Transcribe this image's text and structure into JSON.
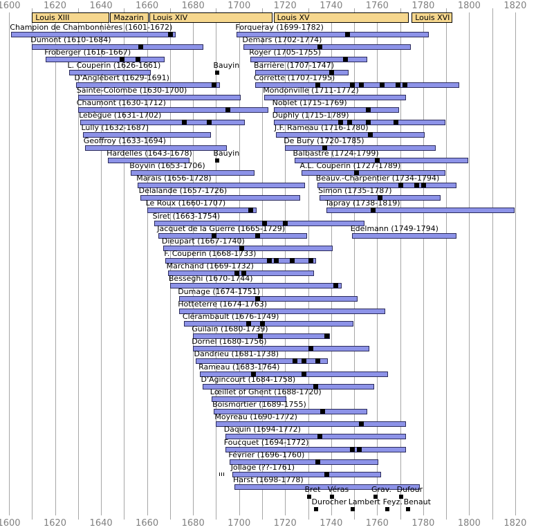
{
  "colors": {
    "background": "#ffffff",
    "bar_fill": "#8d93e8",
    "bar_border": "#2a2a5a",
    "reign_fill": "#f6d78e",
    "reign_border": "#000000",
    "gridline": "#a6a6a6",
    "axis_label": "#808080",
    "text": "#000000",
    "marker": "#000000"
  },
  "chart_data": {
    "type": "bar",
    "subtype": "horizontal-timeline-gantt",
    "xlabel": "year",
    "ylabel": "",
    "grid": "vertical every 10 years",
    "axis": {
      "min": 1600,
      "max": 1820,
      "label_step": 20,
      "grid_step": 10,
      "tick_labels": [
        "1600",
        "1620",
        "1640",
        "1660",
        "1680",
        "1700",
        "1720",
        "1740",
        "1760",
        "1780",
        "1800",
        "1820"
      ],
      "shown_top_and_bottom": true
    },
    "reigns": [
      {
        "label": "Louis XIII",
        "start": 1610,
        "end": 1643
      },
      {
        "label": "Mazarin",
        "start": 1644,
        "end": 1660
      },
      {
        "label": "Louis XIV",
        "start": 1661,
        "end": 1714
      },
      {
        "label": "Louis XV",
        "start": 1715,
        "end": 1773
      },
      {
        "label": "Louis XVI",
        "start": 1775,
        "end": 1792
      }
    ],
    "composers": [
      {
        "label": "Champion de Chambonnières (1601-1672)",
        "start": 1601,
        "end": 1672,
        "row": 1,
        "markers": [
          1670
        ]
      },
      {
        "label": "Dumont (1610-1684)",
        "start": 1610,
        "end": 1684,
        "row": 2,
        "markers": [
          1657
        ]
      },
      {
        "label": "Froberger (1616-1667)",
        "start": 1616,
        "end": 1667,
        "row": 3,
        "markers": [
          1649,
          1656
        ]
      },
      {
        "label": "L. Couperin (1626-1661)",
        "start": 1626,
        "end": 1661,
        "row": 4,
        "markers": []
      },
      {
        "label": "D'Anglébert (1629-1691)",
        "start": 1629,
        "end": 1691,
        "row": 5,
        "markers": [
          1689
        ]
      },
      {
        "label": "Sainte-Colombe (1630-1700)",
        "start": 1630,
        "end": 1700,
        "row": 6,
        "markers": []
      },
      {
        "label": "Chaumont (1630-1712)",
        "start": 1630,
        "end": 1712,
        "row": 7,
        "markers": [
          1695
        ]
      },
      {
        "label": "Lebègue (1631-1702)",
        "start": 1631,
        "end": 1702,
        "row": 8,
        "markers": [
          1676,
          1687
        ]
      },
      {
        "label": "Lully (1632-1687)",
        "start": 1632,
        "end": 1687,
        "row": 9,
        "markers": []
      },
      {
        "label": "Geoffroy (1633-1694)",
        "start": 1633,
        "end": 1694,
        "row": 10,
        "markers": []
      },
      {
        "label": "Hardelles (1643-1678)",
        "start": 1643,
        "end": 1678,
        "row": 11,
        "markers": []
      },
      {
        "label": "Boyvin (1653-1706)",
        "start": 1653,
        "end": 1706,
        "row": 12,
        "markers": []
      },
      {
        "label": "Marais (1656-1728)",
        "start": 1656,
        "end": 1728,
        "row": 13,
        "markers": []
      },
      {
        "label": "Delalande (1657-1726)",
        "start": 1657,
        "end": 1726,
        "row": 14,
        "markers": []
      },
      {
        "label": "Le Roux (1660-1707)",
        "start": 1660,
        "end": 1707,
        "row": 15,
        "markers": [
          1705
        ]
      },
      {
        "label": "Siret (1663-1754)",
        "start": 1663,
        "end": 1754,
        "row": 16,
        "markers": [
          1711,
          1720
        ]
      },
      {
        "label": "Jacquet de la Guerre (1665-1729)",
        "start": 1665,
        "end": 1729,
        "row": 17,
        "markers": [
          1689,
          1708
        ]
      },
      {
        "label": "Dieupart (1667-1740)",
        "start": 1667,
        "end": 1740,
        "row": 18,
        "markers": [
          1701
        ]
      },
      {
        "label": "F. Couperin (1668-1733)",
        "start": 1668,
        "end": 1733,
        "row": 19,
        "markers": [
          1713,
          1716,
          1723,
          1731
        ]
      },
      {
        "label": "Marchand (1669-1732)",
        "start": 1669,
        "end": 1732,
        "row": 20,
        "markers": [
          1699,
          1702
        ]
      },
      {
        "label": "Besseghi (1670-1744)",
        "start": 1670,
        "end": 1744,
        "row": 21,
        "markers": [
          1742
        ]
      },
      {
        "label": "Dumage (1674-1751)",
        "start": 1674,
        "end": 1751,
        "row": 22,
        "markers": [
          1708
        ]
      },
      {
        "label": "Hotteterre (1674-1763)",
        "start": 1674,
        "end": 1763,
        "row": 23,
        "markers": []
      },
      {
        "label": "Clérambault (1676-1749)",
        "start": 1676,
        "end": 1749,
        "row": 24,
        "markers": [
          1704,
          1710
        ]
      },
      {
        "label": "Guilain (1680-1739)",
        "start": 1680,
        "end": 1739,
        "row": 25,
        "markers": [
          1709,
          1738
        ]
      },
      {
        "label": "Dornel (1680-1756)",
        "start": 1680,
        "end": 1756,
        "row": 26,
        "markers": [
          1731
        ]
      },
      {
        "label": "Dandrieu (1681-1738)",
        "start": 1681,
        "end": 1738,
        "row": 27,
        "markers": [
          1724,
          1728,
          1734
        ]
      },
      {
        "label": "Rameau (1683-1764)",
        "start": 1683,
        "end": 1764,
        "row": 28,
        "markers": [
          1706,
          1728
        ]
      },
      {
        "label": "D'Agincourt (1684-1758)",
        "start": 1684,
        "end": 1758,
        "row": 29,
        "markers": [
          1733
        ]
      },
      {
        "label": "Lœillet of Ghent (1688-1720)",
        "start": 1688,
        "end": 1720,
        "row": 30,
        "markers": []
      },
      {
        "label": "Boismortier (1689-1755)",
        "start": 1689,
        "end": 1755,
        "row": 31,
        "markers": [
          1736
        ]
      },
      {
        "label": "Moyreau (1690-1772)",
        "start": 1690,
        "end": 1772,
        "row": 32,
        "markers": [
          1753
        ]
      },
      {
        "label": "Daquin (1694-1772)",
        "start": 1694,
        "end": 1772,
        "row": 33,
        "markers": [
          1735
        ]
      },
      {
        "label": "Foucquet (1694-1772)",
        "start": 1694,
        "end": 1772,
        "row": 34,
        "markers": [
          1749,
          1752
        ]
      },
      {
        "label": "Février (1696-1760)",
        "start": 1696,
        "end": 1760,
        "row": 35,
        "markers": [
          1734
        ]
      },
      {
        "label": "Jollage (??-1761)",
        "start": 1697,
        "end": 1761,
        "row": 36,
        "markers": [
          1738
        ],
        "birth_unknown": true
      },
      {
        "label": "Harst (1698-1778)",
        "start": 1698,
        "end": 1778,
        "row": 37,
        "markers": []
      },
      {
        "label": "Forqueray (1699-1782)",
        "start": 1699,
        "end": 1782,
        "row": 1,
        "markers": [
          1747
        ]
      },
      {
        "label": "Demars (1702-1774)",
        "start": 1702,
        "end": 1774,
        "row": 2,
        "markers": [
          1735
        ]
      },
      {
        "label": "Royer (1705-1755)",
        "start": 1705,
        "end": 1755,
        "row": 3,
        "markers": [
          1746
        ]
      },
      {
        "label": "Barrière (1707-1747)",
        "start": 1707,
        "end": 1747,
        "row": 4,
        "markers": [
          1740
        ]
      },
      {
        "label": "Corrette (1707-1795)",
        "start": 1707,
        "end": 1795,
        "row": 5,
        "markers": [
          1734,
          1749,
          1753,
          1762,
          1769,
          1772
        ]
      },
      {
        "label": "Mondonville (1711-1772)",
        "start": 1711,
        "end": 1772,
        "row": 6,
        "markers": []
      },
      {
        "label": "Noblet (1715-1769)",
        "start": 1715,
        "end": 1769,
        "row": 7,
        "markers": [
          1756
        ]
      },
      {
        "label": "Duphly (1715-1789)",
        "start": 1715,
        "end": 1789,
        "row": 8,
        "markers": [
          1744,
          1748,
          1756,
          1768
        ]
      },
      {
        "label": "J.F. Rameau (1716-1780)",
        "start": 1716,
        "end": 1780,
        "row": 9,
        "markers": [
          1757
        ]
      },
      {
        "label": "De Bury (1720-1785)",
        "start": 1720,
        "end": 1785,
        "row": 10,
        "markers": [
          1737
        ]
      },
      {
        "label": "Balbastre (1724-1799)",
        "start": 1724,
        "end": 1799,
        "row": 11,
        "markers": [
          1760
        ]
      },
      {
        "label": "A.L. Couperin (1727-1789)",
        "start": 1727,
        "end": 1789,
        "row": 12,
        "markers": [
          1751
        ]
      },
      {
        "label": "Beauv.-Charpentier (1734-1794)",
        "start": 1734,
        "end": 1794,
        "row": 13,
        "markers": [
          1770,
          1777,
          1780
        ]
      },
      {
        "label": "Simon (1735-1787)",
        "start": 1735,
        "end": 1787,
        "row": 14,
        "markers": [
          1761
        ]
      },
      {
        "label": "Tapray (1738-1819)",
        "start": 1738,
        "end": 1819,
        "row": 15,
        "markers": [
          1758
        ]
      },
      {
        "label": "Edelmann (1749-1794)",
        "start": 1749,
        "end": 1794,
        "row": 17,
        "markers": []
      }
    ],
    "annotations": [
      {
        "label": "Bauyin",
        "year": 1690,
        "row": 4
      },
      {
        "label": "Bauyin",
        "year": 1690,
        "row": 11
      }
    ],
    "footer": [
      {
        "label": "Bret",
        "year": 1730,
        "line": 1
      },
      {
        "label": "Véras",
        "year": 1740,
        "line": 1
      },
      {
        "label": "Grav.",
        "year": 1759,
        "line": 1
      },
      {
        "label": "Dufour",
        "year": 1770,
        "line": 1
      },
      {
        "label": "Durocher",
        "year": 1733,
        "line": 2
      },
      {
        "label": "Lambert",
        "year": 1749,
        "line": 2
      },
      {
        "label": "Feyz.",
        "year": 1764,
        "line": 2
      },
      {
        "label": "Benaut",
        "year": 1773,
        "line": 2
      }
    ]
  }
}
